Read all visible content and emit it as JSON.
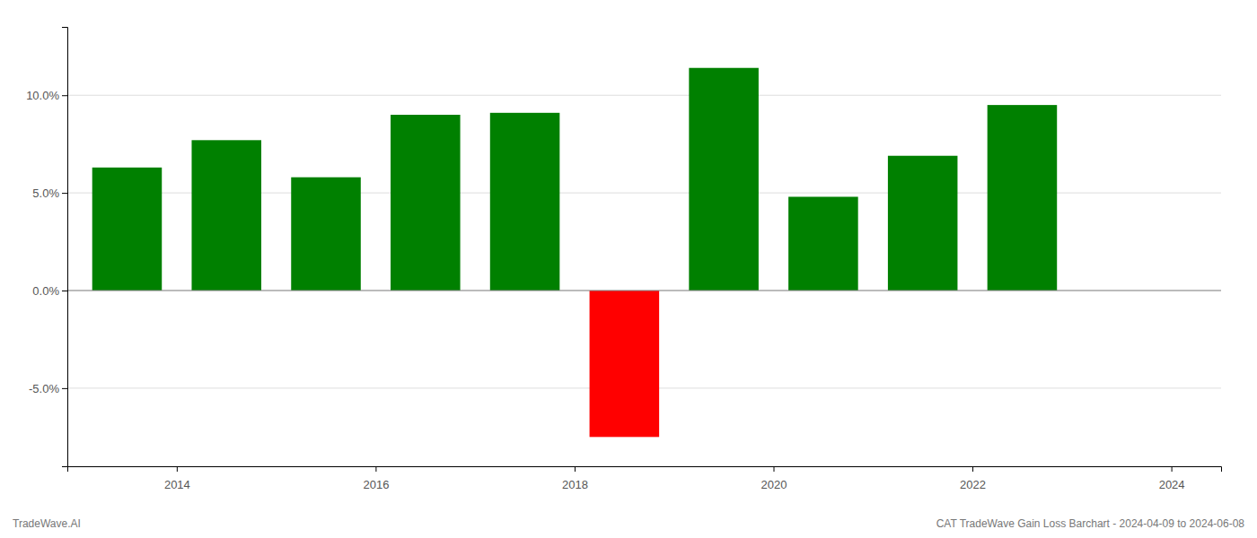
{
  "chart_data": {
    "type": "bar",
    "x": [
      2013,
      2014,
      2015,
      2016,
      2017,
      2018,
      2019,
      2020,
      2021,
      2022
    ],
    "values": [
      0.063,
      0.077,
      0.058,
      0.09,
      0.091,
      -0.075,
      0.114,
      0.048,
      0.069,
      0.095
    ],
    "colors": [
      "#008000",
      "#008000",
      "#008000",
      "#008000",
      "#008000",
      "#ff0000",
      "#008000",
      "#008000",
      "#008000",
      "#008000"
    ],
    "xlim": [
      2012.4,
      2024.0
    ],
    "xticks": [
      {
        "value": 2013.5,
        "label": "2014"
      },
      {
        "value": 2015.5,
        "label": "2016"
      },
      {
        "value": 2017.5,
        "label": "2018"
      },
      {
        "value": 2019.5,
        "label": "2020"
      },
      {
        "value": 2021.5,
        "label": "2022"
      },
      {
        "value": 2023.5,
        "label": "2024"
      }
    ],
    "ylim": [
      -0.09,
      0.135
    ],
    "yticks": [
      {
        "value": -0.05,
        "label": "-5.0%"
      },
      {
        "value": 0.0,
        "label": "0.0%"
      },
      {
        "value": 0.05,
        "label": "5.0%"
      },
      {
        "value": 0.1,
        "label": "10.0%"
      }
    ],
    "grid": true,
    "annotations": [
      "TradeWave.AI",
      "CAT TradeWave Gain Loss Barchart - 2024-04-09 to 2024-06-08"
    ]
  }
}
